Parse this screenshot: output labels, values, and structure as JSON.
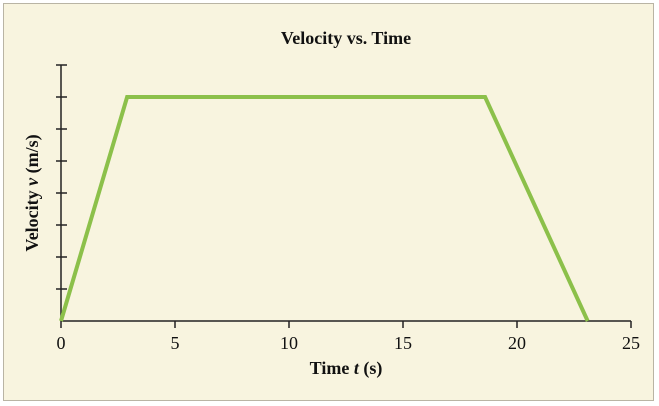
{
  "chart_data": {
    "type": "line",
    "title": "Velocity vs. Time",
    "xlabel_parts": [
      "Time ",
      "t",
      " (s)"
    ],
    "ylabel_parts": [
      "Velocity ",
      "v",
      " (m/s)"
    ],
    "xlim": [
      0,
      25
    ],
    "ylim": [
      0,
      8
    ],
    "x_ticks": [
      0,
      5,
      10,
      15,
      20,
      25
    ],
    "x_tick_labels": [
      "0",
      "5",
      "10",
      "15",
      "20",
      "25"
    ],
    "y_ticks": [
      0,
      1,
      2,
      3,
      4,
      5,
      6,
      7,
      8
    ],
    "y_tick_labels_shown": false,
    "grid": false,
    "series": [
      {
        "x": [
          0,
          2.9,
          18.6,
          23.1
        ],
        "y": [
          0,
          7,
          7,
          0
        ],
        "color": "#8cc04a"
      }
    ],
    "axis_color": "#222222",
    "background_color": "#f8f4df"
  }
}
